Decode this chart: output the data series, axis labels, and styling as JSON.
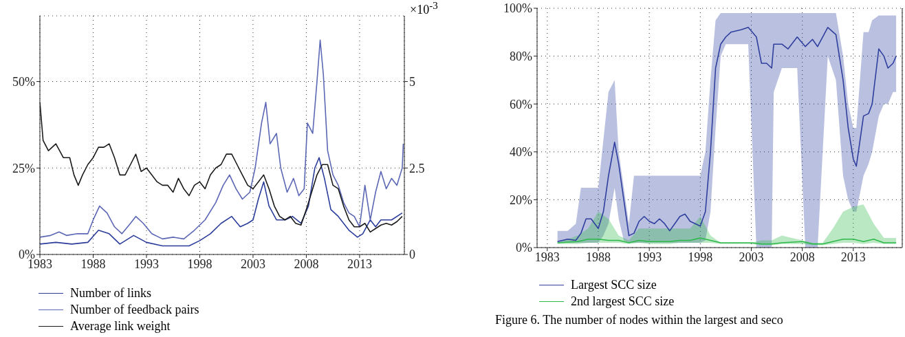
{
  "chart_data": [
    {
      "type": "line",
      "xlim": [
        1983,
        2017.2
      ],
      "xticks": [
        1983,
        1988,
        1993,
        1998,
        2003,
        2008,
        2013
      ],
      "ylim": [
        0,
        69
      ],
      "yticks": [
        {
          "value": 0,
          "label": "0%"
        },
        {
          "value": 25,
          "label": "25%"
        },
        {
          "value": 50,
          "label": "50%"
        }
      ],
      "y2lim": [
        0,
        6.9
      ],
      "y2ticks": [
        0,
        2.5,
        5
      ],
      "y2label": "×10$^{-3}$",
      "grid": true,
      "legend": "bottom",
      "series": [
        {
          "name": "Number of links",
          "color": "#2b3d9b",
          "x": [
            1983,
            1984.5,
            1986,
            1987.5,
            1988.5,
            1989.5,
            1990.5,
            1991.8,
            1993,
            1994.5,
            1996,
            1997,
            1998,
            1999,
            2000,
            2001,
            2001.8,
            2002.5,
            2003,
            2003.5,
            2004,
            2004.5,
            2005.2,
            2006,
            2006.7,
            2007.5,
            2008.2,
            2008.8,
            2009.2,
            2009.7,
            2010.3,
            2011,
            2012,
            2012.8,
            2013.3,
            2014,
            2014.5,
            2015,
            2016,
            2017
          ],
          "values": [
            3,
            3.5,
            3,
            3.5,
            7,
            6,
            3,
            5.5,
            3.5,
            2.5,
            2.5,
            2.5,
            4,
            6,
            9,
            11,
            8,
            9,
            10,
            16,
            21,
            14,
            10,
            10,
            11,
            9,
            14,
            25,
            28,
            22,
            13,
            11,
            7,
            5,
            6,
            10,
            8,
            10,
            10,
            12
          ]
        },
        {
          "name": "Number of feedback pairs",
          "color": "#5b67b5",
          "x": [
            1983,
            1984,
            1984.8,
            1985.5,
            1986.5,
            1987.5,
            1988,
            1988.6,
            1989.3,
            1990,
            1990.7,
            1991.5,
            1992,
            1992.7,
            1993.5,
            1994.5,
            1995.5,
            1996.5,
            1997.5,
            1998.5,
            1999.5,
            2000.2,
            2000.8,
            2001.4,
            2002,
            2002.7,
            2003.2,
            2003.8,
            2004.2,
            2004.6,
            2005.2,
            2005.6,
            2006.2,
            2006.8,
            2007.3,
            2007.8,
            2008.1,
            2008.6,
            2009,
            2009.3,
            2009.6,
            2010,
            2010.5,
            2011,
            2011.5,
            2012,
            2012.5,
            2013,
            2013.5,
            2014,
            2014.5,
            2015,
            2015.5,
            2016,
            2016.5,
            2017,
            2017.1
          ],
          "values": [
            5,
            5.5,
            6.5,
            5.5,
            6,
            6,
            10,
            14,
            12,
            8,
            6,
            9,
            11,
            9,
            6,
            4.5,
            5,
            4.5,
            7,
            10,
            15,
            20,
            23,
            19,
            16,
            18,
            25,
            38,
            44,
            32,
            35,
            25,
            18,
            22,
            17,
            19,
            38,
            35,
            50,
            62,
            52,
            30,
            23,
            20,
            15,
            12,
            11,
            8,
            20,
            10,
            18,
            24,
            19,
            22,
            20,
            25,
            32
          ]
        },
        {
          "name": "Average link weight",
          "color": "#1a1a1a",
          "axis": "y2",
          "x": [
            1983,
            1983.3,
            1983.8,
            1984.5,
            1985.2,
            1985.8,
            1986.2,
            1986.6,
            1987,
            1987.5,
            1988,
            1988.5,
            1989,
            1989.5,
            1990,
            1990.5,
            1991,
            1991.5,
            1992,
            1992.5,
            1993,
            1993.5,
            1994,
            1994.5,
            1995,
            1995.5,
            1996,
            1996.5,
            1997,
            1997.5,
            1998,
            1998.5,
            1999,
            1999.5,
            2000,
            2000.5,
            2001,
            2001.5,
            2002,
            2002.5,
            2003,
            2003.5,
            2004,
            2004.5,
            2005,
            2005.5,
            2006,
            2006.5,
            2007,
            2007.5,
            2008,
            2008.5,
            2009,
            2009.5,
            2010,
            2010.5,
            2011,
            2011.5,
            2012,
            2012.5,
            2013,
            2013.5,
            2014,
            2014.5,
            2015,
            2015.5,
            2016,
            2016.5,
            2017
          ],
          "values": [
            4.4,
            3.3,
            3.0,
            3.2,
            2.8,
            2.8,
            2.3,
            2.0,
            2.3,
            2.6,
            2.8,
            3.1,
            3.1,
            3.2,
            2.8,
            2.3,
            2.3,
            2.6,
            2.9,
            2.4,
            2.5,
            2.3,
            2.1,
            2.0,
            2.0,
            1.8,
            2.2,
            1.9,
            1.7,
            2.0,
            2.1,
            1.9,
            2.3,
            2.5,
            2.6,
            2.9,
            2.9,
            2.6,
            2.3,
            2.0,
            1.9,
            2.1,
            2.3,
            1.9,
            1.4,
            1.1,
            1.0,
            1.1,
            0.9,
            0.85,
            1.3,
            1.8,
            2.3,
            2.6,
            2.6,
            2.0,
            1.9,
            1.4,
            1.0,
            0.8,
            0.8,
            0.9,
            0.65,
            0.75,
            0.85,
            0.9,
            0.85,
            0.95,
            1.1
          ]
        }
      ]
    },
    {
      "type": "line",
      "xlim": [
        1982,
        2017.8
      ],
      "xticks": [
        1983,
        1988,
        1993,
        1998,
        2003,
        2008,
        2013
      ],
      "ylim": [
        0,
        100
      ],
      "yticks": [
        {
          "value": 0,
          "label": "0%"
        },
        {
          "value": 20,
          "label": "20%"
        },
        {
          "value": 40,
          "label": "40%"
        },
        {
          "value": 60,
          "label": "60%"
        },
        {
          "value": 80,
          "label": "80%"
        },
        {
          "value": 100,
          "label": "100%"
        }
      ],
      "grid": true,
      "legend": "bottom",
      "annotations": [
        "Figure 6. The number of nodes within the largest and seco"
      ],
      "series": [
        {
          "name": "Largest SCC size",
          "color": "#2f3f9e",
          "x": [
            1984,
            1985,
            1985.8,
            1986.3,
            1986.8,
            1987.3,
            1988,
            1988.5,
            1989,
            1989.6,
            1990,
            1990.5,
            1991,
            1991.5,
            1992,
            1992.5,
            1993,
            1993.5,
            1994,
            1994.5,
            1995,
            1995.5,
            1996,
            1996.5,
            1997,
            1997.5,
            1998,
            1998.5,
            1999,
            1999.5,
            2000,
            2000.5,
            2001,
            2002,
            2002.7,
            2003.5,
            2004,
            2004.5,
            2005,
            2005.2,
            2006,
            2006.6,
            2007.5,
            2008.3,
            2009,
            2009.5,
            2010.5,
            2011.3,
            2012,
            2012.5,
            2013,
            2013.3,
            2014,
            2014.5,
            2014.85,
            2015.5,
            2016,
            2016.4,
            2016.9,
            2017.2
          ],
          "values": [
            2.5,
            3.5,
            3,
            6,
            12,
            12,
            8,
            15,
            30,
            44,
            35,
            20,
            5,
            6,
            11,
            13,
            11,
            10,
            12,
            10,
            7,
            10,
            13,
            14,
            11,
            10,
            9,
            15,
            40,
            75,
            85,
            88,
            90,
            91,
            92,
            88,
            77,
            77,
            75,
            85,
            85,
            83,
            88,
            84,
            87,
            84,
            92,
            89,
            70,
            50,
            37,
            34,
            55,
            56,
            60,
            83,
            80,
            75,
            77,
            80
          ],
          "lower": [
            2,
            2,
            2,
            2,
            2,
            2,
            2,
            5,
            10,
            25,
            12,
            3,
            2,
            2,
            2,
            2,
            2,
            2,
            2,
            2,
            2,
            2,
            2,
            2,
            2,
            2,
            2,
            3,
            15,
            50,
            80,
            85,
            85,
            85,
            85,
            0,
            0,
            0,
            0,
            65,
            75,
            75,
            75,
            0,
            0,
            0,
            80,
            70,
            30,
            20,
            15,
            15,
            30,
            35,
            40,
            55,
            60,
            60,
            65,
            65
          ],
          "upper": [
            7,
            7,
            10,
            25,
            25,
            25,
            25,
            45,
            65,
            70,
            40,
            25,
            10,
            30,
            30,
            30,
            30,
            30,
            30,
            30,
            30,
            30,
            30,
            30,
            30,
            30,
            30,
            40,
            70,
            95,
            98,
            98,
            98,
            98,
            98,
            98,
            98,
            98,
            98,
            98,
            98,
            98,
            98,
            98,
            98,
            98,
            98,
            98,
            80,
            60,
            50,
            50,
            90,
            90,
            95,
            97,
            97,
            97,
            97,
            97
          ]
        },
        {
          "name": "2nd largest SCC size",
          "color": "#2db84a",
          "x": [
            1984,
            1986,
            1987,
            1988,
            1989,
            1990,
            1991,
            1992,
            1993,
            1995,
            1996,
            1997,
            1998,
            1999,
            2000,
            2003,
            2004,
            2005,
            2006,
            2008,
            2009,
            2010,
            2011,
            2012,
            2013,
            2014,
            2015,
            2016,
            2017.2
          ],
          "values": [
            2,
            2.5,
            3.5,
            3.5,
            3,
            3,
            2,
            3,
            2.5,
            2.5,
            3,
            3,
            4,
            3,
            2,
            2,
            1.5,
            1.5,
            2,
            2.5,
            1.5,
            1.5,
            2.5,
            3.5,
            3.5,
            2.5,
            3.5,
            2,
            2
          ],
          "lower": [
            1.5,
            1.5,
            2,
            2,
            2,
            2,
            1.5,
            2,
            1.5,
            1.5,
            2,
            2,
            2,
            2,
            1.5,
            1.5,
            1,
            1,
            1.5,
            1.5,
            1,
            1,
            1.5,
            2,
            2,
            1.5,
            2,
            1.5,
            1.5
          ],
          "upper": [
            2,
            5,
            8,
            15,
            12,
            5,
            3,
            8,
            8,
            8,
            8,
            8,
            13,
            5,
            2,
            2,
            3,
            3,
            5,
            3,
            2,
            2,
            8,
            15,
            17,
            18,
            10,
            4,
            4
          ]
        }
      ]
    }
  ]
}
